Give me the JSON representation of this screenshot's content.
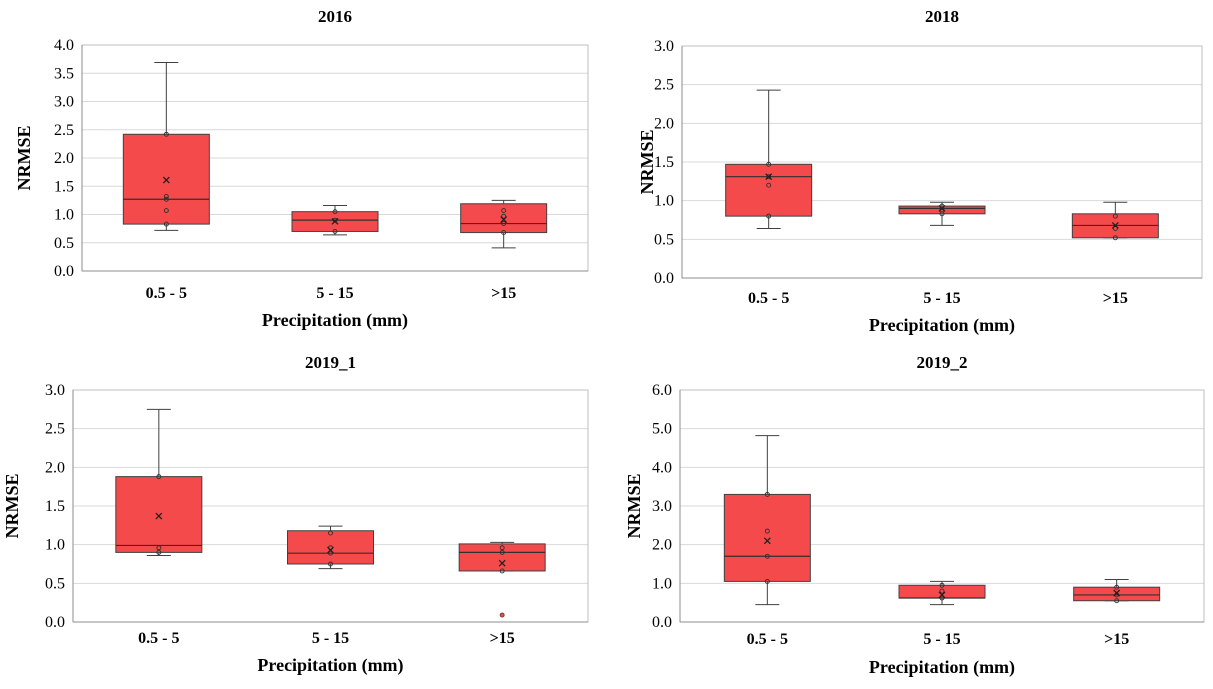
{
  "chart_data": [
    {
      "type": "box",
      "title": "2016",
      "xlabel": "Precipitation (mm)",
      "ylabel": "NRMSE",
      "ylim": [
        0,
        4
      ],
      "yticks": [
        "0.0",
        "0.5",
        "1.0",
        "1.5",
        "2.0",
        "2.5",
        "3.0",
        "3.5",
        "4.0"
      ],
      "categories": [
        "0.5 - 5",
        "5 - 15",
        ">15"
      ],
      "grid": true,
      "color": "#f44a4c",
      "boxes": [
        {
          "category": "0.5 - 5",
          "min": 0.72,
          "q1": 0.83,
          "median": 1.27,
          "q3": 2.42,
          "max": 3.69,
          "mean": 1.61,
          "points": [
            0.83,
            1.07,
            1.27,
            1.32,
            2.42
          ]
        },
        {
          "category": "5 - 15",
          "min": 0.64,
          "q1": 0.7,
          "median": 0.9,
          "q3": 1.05,
          "max": 1.16,
          "mean": 0.88,
          "points": [
            0.7,
            0.9,
            1.05
          ]
        },
        {
          "category": ">15",
          "min": 0.41,
          "q1": 0.68,
          "median": 0.84,
          "q3": 1.19,
          "max": 1.25,
          "mean": 0.91,
          "points": [
            0.68,
            0.84,
            0.97,
            1.07
          ]
        }
      ]
    },
    {
      "type": "box",
      "title": "2018",
      "xlabel": "Precipitation (mm)",
      "ylabel": "NRMSE",
      "ylim": [
        0,
        3
      ],
      "yticks": [
        "0.0",
        "0.5",
        "1.0",
        "1.5",
        "2.0",
        "2.5",
        "3.0"
      ],
      "categories": [
        "0.5 - 5",
        "5 - 15",
        ">15"
      ],
      "grid": true,
      "color": "#f44a4c",
      "boxes": [
        {
          "category": "0.5 - 5",
          "min": 0.64,
          "q1": 0.8,
          "median": 1.31,
          "q3": 1.47,
          "max": 2.43,
          "mean": 1.31,
          "points": [
            0.8,
            1.2,
            1.31,
            1.47
          ]
        },
        {
          "category": "5 - 15",
          "min": 0.68,
          "q1": 0.83,
          "median": 0.9,
          "q3": 0.93,
          "max": 0.98,
          "mean": 0.9,
          "points": [
            0.83,
            0.88,
            0.93
          ]
        },
        {
          "category": ">15",
          "min": 0.52,
          "q1": 0.52,
          "median": 0.68,
          "q3": 0.83,
          "max": 0.98,
          "mean": 0.68,
          "points": [
            0.52,
            0.64,
            0.8
          ]
        }
      ]
    },
    {
      "type": "box",
      "title": "2019_1",
      "xlabel": "Precipitation (mm)",
      "ylabel": "NRMSE",
      "ylim": [
        0,
        3
      ],
      "yticks": [
        "0.0",
        "0.5",
        "1.0",
        "1.5",
        "2.0",
        "2.5",
        "3.0"
      ],
      "categories": [
        "0.5 - 5",
        "5 - 15",
        ">15"
      ],
      "grid": true,
      "color": "#f44a4c",
      "boxes": [
        {
          "category": "0.5 - 5",
          "min": 0.86,
          "q1": 0.9,
          "median": 0.99,
          "q3": 1.88,
          "max": 2.75,
          "mean": 1.37,
          "points": [
            0.9,
            0.96,
            1.88
          ]
        },
        {
          "category": "5 - 15",
          "min": 0.69,
          "q1": 0.75,
          "median": 0.89,
          "q3": 1.18,
          "max": 1.24,
          "mean": 0.93,
          "points": [
            0.75,
            0.89,
            0.96,
            1.15
          ]
        },
        {
          "category": ">15",
          "min": 0.66,
          "q1": 0.66,
          "median": 0.9,
          "q3": 1.01,
          "max": 1.03,
          "mean": 0.76,
          "points": [
            0.66,
            0.9,
            0.96
          ],
          "outliers": [
            0.09
          ]
        }
      ]
    },
    {
      "type": "box",
      "title": "2019_2",
      "xlabel": "Precipitation (mm)",
      "ylabel": "NRMSE",
      "ylim": [
        0,
        6
      ],
      "yticks": [
        "0.0",
        "1.0",
        "2.0",
        "3.0",
        "4.0",
        "5.0",
        "6.0"
      ],
      "categories": [
        "0.5 - 5",
        "5 - 15",
        ">15"
      ],
      "grid": true,
      "color": "#f44a4c",
      "boxes": [
        {
          "category": "0.5 - 5",
          "min": 0.45,
          "q1": 1.05,
          "median": 1.7,
          "q3": 3.3,
          "max": 4.82,
          "mean": 2.1,
          "points": [
            1.05,
            1.7,
            2.35,
            3.3
          ]
        },
        {
          "category": "5 - 15",
          "min": 0.45,
          "q1": 0.62,
          "median": 0.62,
          "q3": 0.95,
          "max": 1.05,
          "mean": 0.7,
          "points": [
            0.62,
            0.8,
            0.95
          ]
        },
        {
          "category": ">15",
          "min": 0.55,
          "q1": 0.55,
          "median": 0.7,
          "q3": 0.9,
          "max": 1.1,
          "mean": 0.75,
          "points": [
            0.55,
            0.7,
            0.9
          ]
        }
      ]
    }
  ]
}
